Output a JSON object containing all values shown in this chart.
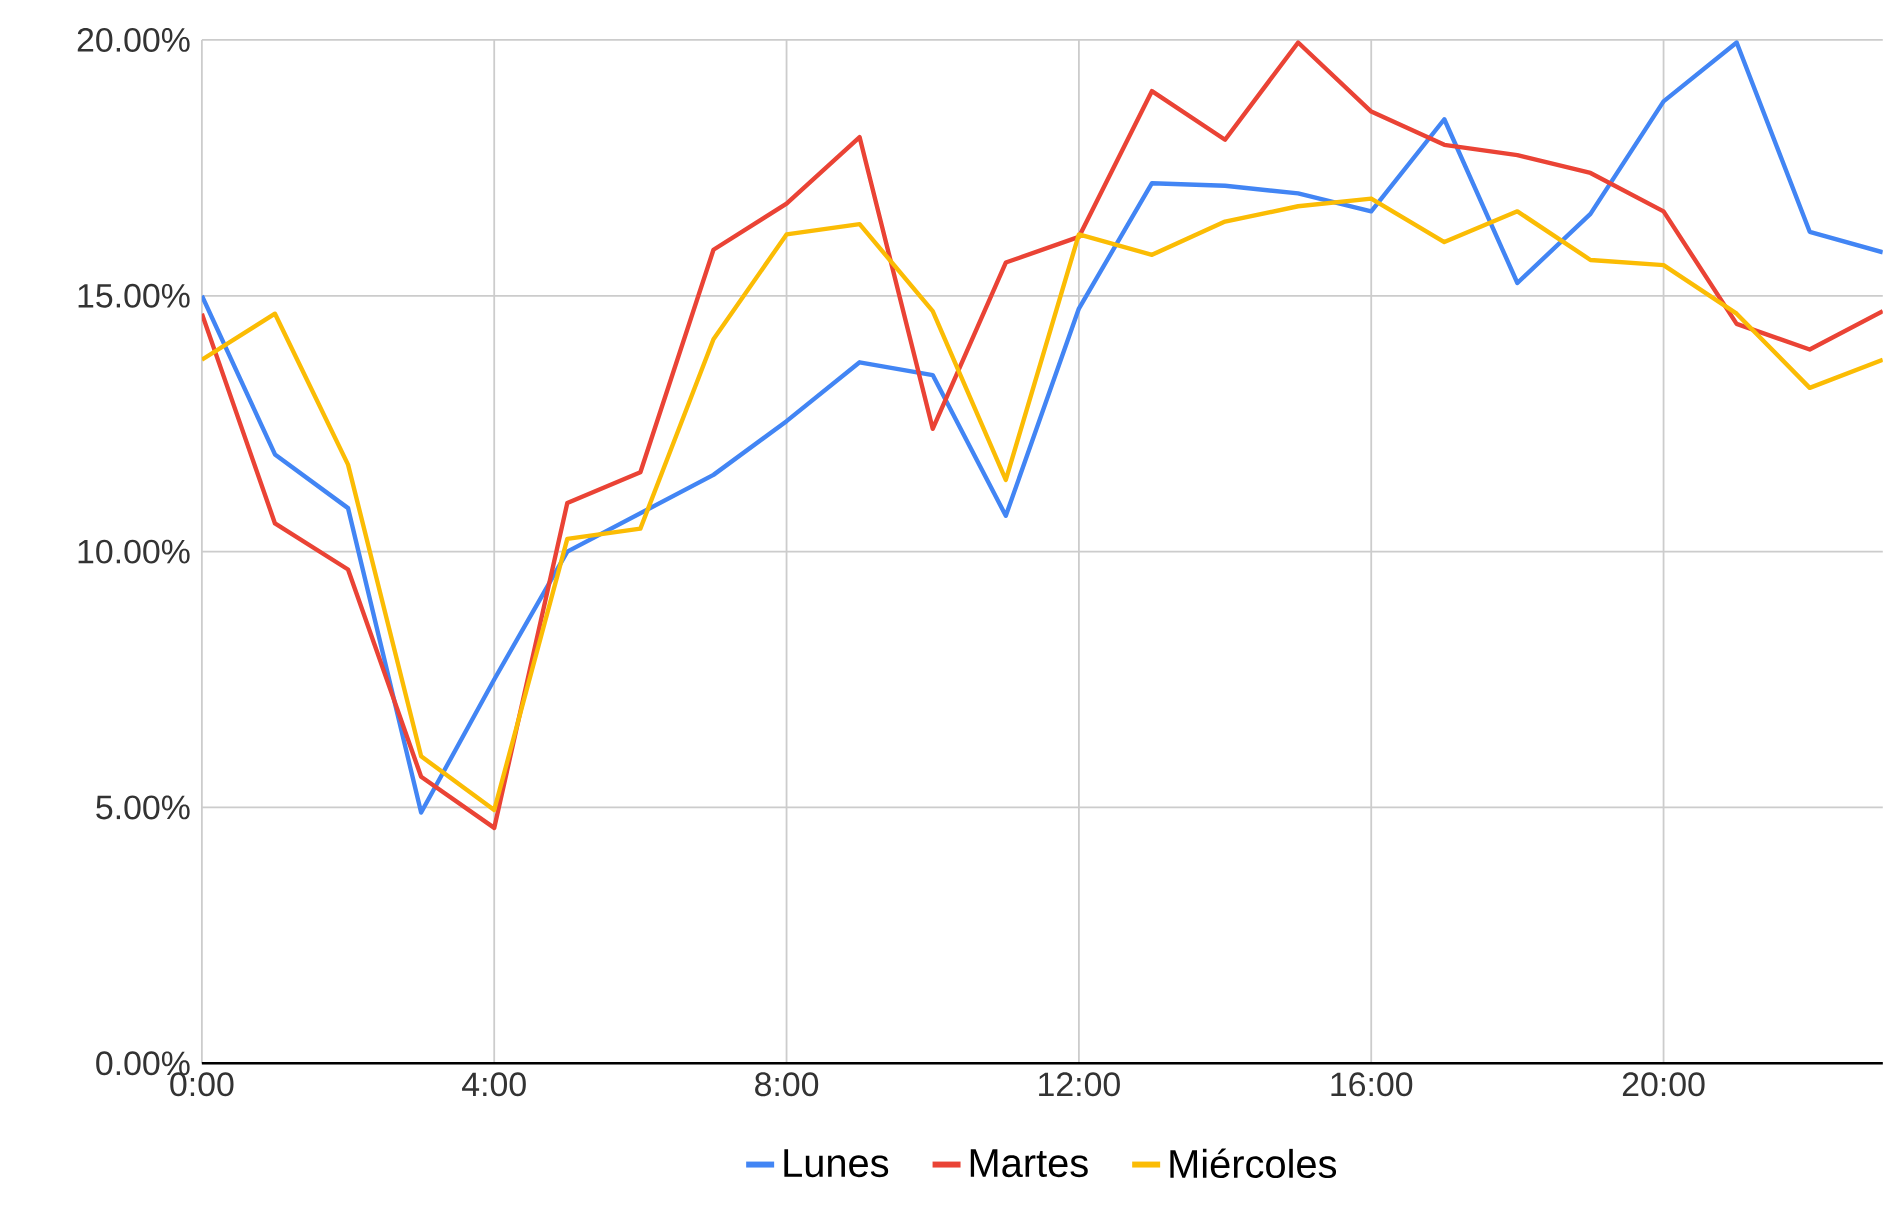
{
  "chart_data": {
    "type": "line",
    "x": [
      0,
      1,
      2,
      3,
      4,
      5,
      6,
      7,
      8,
      9,
      10,
      11,
      12,
      13,
      14,
      15,
      16,
      17,
      18,
      19,
      20,
      21,
      22,
      23
    ],
    "series": [
      {
        "name": "Lunes",
        "color": "#4285f4",
        "values": [
          15.0,
          11.9,
          10.85,
          4.9,
          7.5,
          10.0,
          10.75,
          11.5,
          12.55,
          13.7,
          13.45,
          10.7,
          14.75,
          17.2,
          17.15,
          17.0,
          16.65,
          18.45,
          15.25,
          16.6,
          18.8,
          19.95,
          16.25,
          15.85
        ]
      },
      {
        "name": "Martes",
        "color": "#ea4335",
        "values": [
          14.65,
          10.55,
          9.65,
          5.6,
          4.6,
          10.95,
          11.55,
          15.9,
          16.8,
          18.1,
          12.4,
          15.65,
          16.15,
          19.0,
          18.05,
          19.95,
          18.6,
          17.95,
          17.75,
          17.4,
          16.65,
          14.45,
          13.95,
          14.7
        ]
      },
      {
        "name": "Miércoles",
        "color": "#fbbc04",
        "values": [
          13.75,
          14.65,
          11.7,
          6.0,
          4.95,
          10.25,
          10.45,
          14.15,
          16.2,
          16.4,
          14.7,
          11.4,
          16.2,
          15.8,
          16.45,
          16.75,
          16.9,
          16.05,
          16.65,
          15.7,
          15.6,
          14.65,
          13.2,
          13.75
        ]
      }
    ],
    "xlim": [
      0,
      23
    ],
    "xticks": [
      {
        "value": 0,
        "label": "0:00"
      },
      {
        "value": 4,
        "label": "4:00"
      },
      {
        "value": 8,
        "label": "8:00"
      },
      {
        "value": 12,
        "label": "12:00"
      },
      {
        "value": 16,
        "label": "16:00"
      },
      {
        "value": 20,
        "label": "20:00"
      }
    ],
    "ylim": [
      0,
      20
    ],
    "yticks": [
      {
        "value": 0,
        "label": "0.00%"
      },
      {
        "value": 5,
        "label": "5.00%"
      },
      {
        "value": 10,
        "label": "10.00%"
      },
      {
        "value": 15,
        "label": "15.00%"
      },
      {
        "value": 20,
        "label": "20.00%"
      }
    ],
    "grid": true,
    "legend": "bottom",
    "marker": "none",
    "line_style": "solid"
  }
}
